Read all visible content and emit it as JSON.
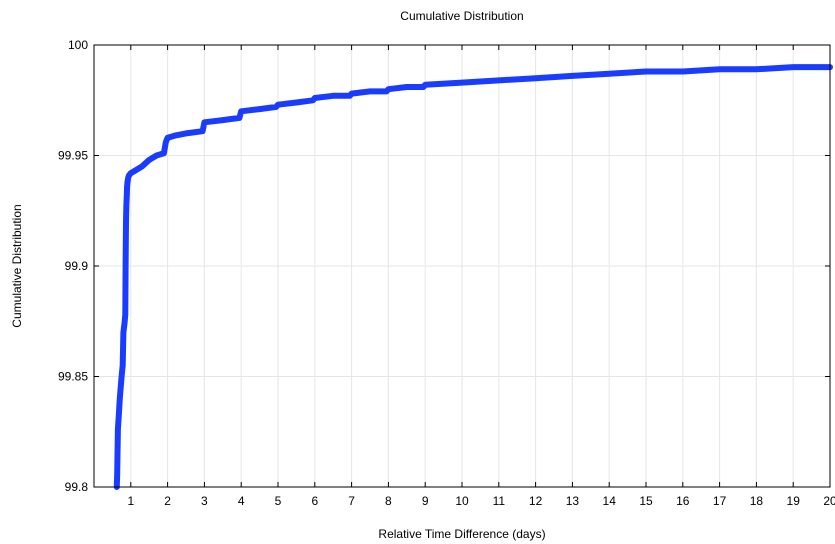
{
  "chart_data": {
    "type": "line",
    "title": "Cumulative Distribution",
    "xlabel": "Relative Time Difference (days)",
    "ylabel": "Cumulative Distribution",
    "xlim": [
      0,
      20
    ],
    "ylim": [
      99.8,
      100
    ],
    "xticks": [
      1,
      2,
      3,
      4,
      5,
      6,
      7,
      8,
      9,
      10,
      11,
      12,
      13,
      14,
      15,
      16,
      17,
      18,
      19,
      20
    ],
    "yticks": [
      99.8,
      99.85,
      99.9,
      99.95,
      100
    ],
    "ytick_labels": [
      "99.8",
      "99.85",
      "99.9",
      "99.95",
      "100"
    ],
    "grid": true,
    "line_color": "#1a3cff",
    "series": [
      {
        "x": [
          0.62,
          0.63,
          0.65,
          0.68,
          0.7,
          0.72,
          0.75,
          0.78,
          0.8,
          0.83,
          0.85,
          0.86,
          0.87,
          0.88,
          0.89,
          0.9,
          0.91,
          0.93,
          0.95,
          1.0,
          1.1,
          1.3,
          1.5,
          1.6,
          1.7,
          1.9,
          1.95,
          2.0,
          2.2,
          2.5,
          2.95,
          3.0,
          3.5,
          3.95,
          4.0,
          4.5,
          4.95,
          5.0,
          5.5,
          5.95,
          6.0,
          6.5,
          6.95,
          7.0,
          7.5,
          7.95,
          8.0,
          8.5,
          8.95,
          9.0,
          10.0,
          11.0,
          12.0,
          13.0,
          14.0,
          15.0,
          16.0,
          17.0,
          18.0,
          19.0,
          20.0
        ],
        "y": [
          99.8,
          99.806,
          99.826,
          99.834,
          99.84,
          99.844,
          99.85,
          99.855,
          99.87,
          99.874,
          99.878,
          99.9,
          99.92,
          99.928,
          99.932,
          99.936,
          99.938,
          99.94,
          99.941,
          99.942,
          99.943,
          99.945,
          99.948,
          99.949,
          99.95,
          99.951,
          99.956,
          99.958,
          99.959,
          99.96,
          99.961,
          99.965,
          99.966,
          99.967,
          99.97,
          99.971,
          99.972,
          99.973,
          99.974,
          99.975,
          99.976,
          99.977,
          99.977,
          99.978,
          99.979,
          99.979,
          99.98,
          99.981,
          99.981,
          99.982,
          99.983,
          99.984,
          99.985,
          99.986,
          99.987,
          99.988,
          99.988,
          99.989,
          99.989,
          99.99,
          99.99
        ]
      }
    ]
  }
}
